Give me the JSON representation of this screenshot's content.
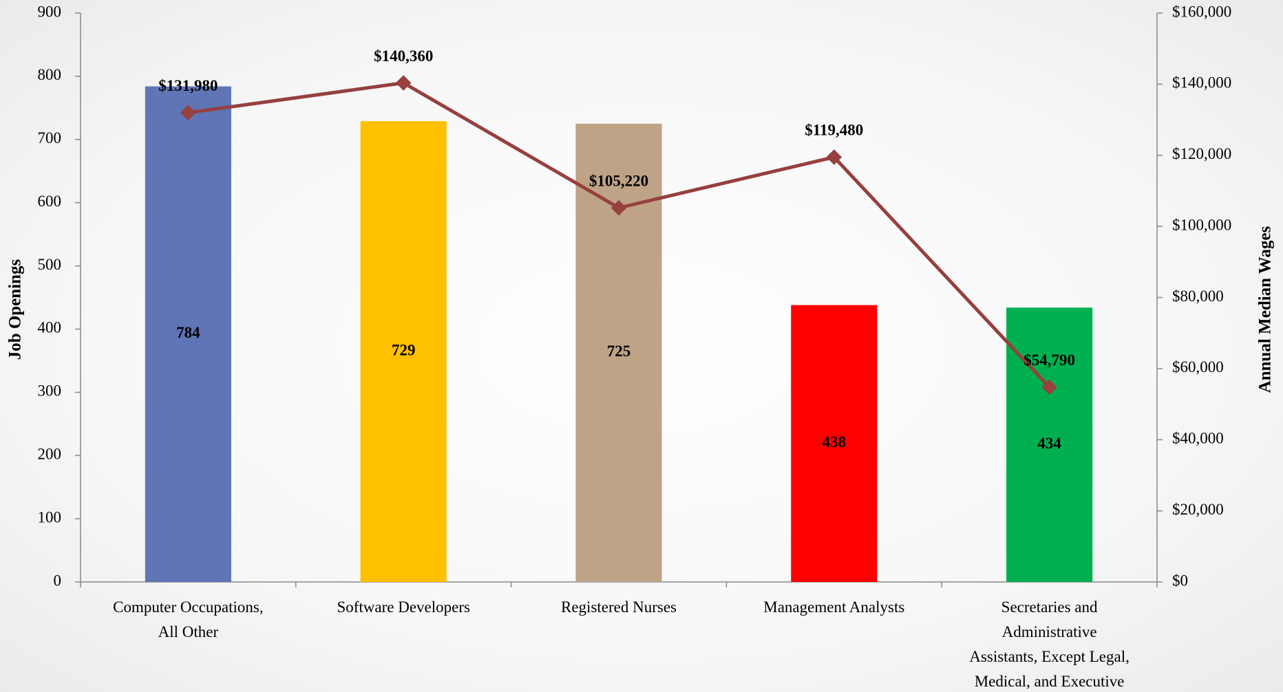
{
  "chart_data": {
    "type": "bar_line",
    "categories": [
      "Computer Occupations,\nAll Other",
      "Software Developers",
      "Registered Nurses",
      "Management Analysts",
      "Secretaries and\nAdministrative\nAssistants, Except Legal,\nMedical, and Executive"
    ],
    "ylabel": "Job Openings",
    "y2label": "Annual Median Wages",
    "ylim": [
      0,
      900
    ],
    "yticks": [
      0,
      100,
      200,
      300,
      400,
      500,
      600,
      700,
      800,
      900
    ],
    "y2lim": [
      0,
      160000
    ],
    "y2ticks": [
      {
        "value": 0,
        "label": "$0"
      },
      {
        "value": 20000,
        "label": "$20,000"
      },
      {
        "value": 40000,
        "label": "$40,000"
      },
      {
        "value": 60000,
        "label": "$60,000"
      },
      {
        "value": 80000,
        "label": "$80,000"
      },
      {
        "value": 100000,
        "label": "$100,000"
      },
      {
        "value": 120000,
        "label": "$120,000"
      },
      {
        "value": 140000,
        "label": "$140,000"
      },
      {
        "value": 160000,
        "label": "$160,000"
      }
    ],
    "series": [
      {
        "type": "bar",
        "colors": [
          "#5f75b5",
          "#ffc000",
          "#bfa386",
          "#ff0000",
          "#00b050"
        ],
        "values": [
          784,
          729,
          725,
          438,
          434
        ]
      },
      {
        "type": "line",
        "axis": "y2",
        "color": "#96403f",
        "values": [
          131980,
          140360,
          105220,
          119480,
          54790
        ],
        "value_labels": [
          "$131,980",
          "$140,360",
          "$105,220",
          "$119,480",
          "$54,790"
        ]
      }
    ]
  }
}
